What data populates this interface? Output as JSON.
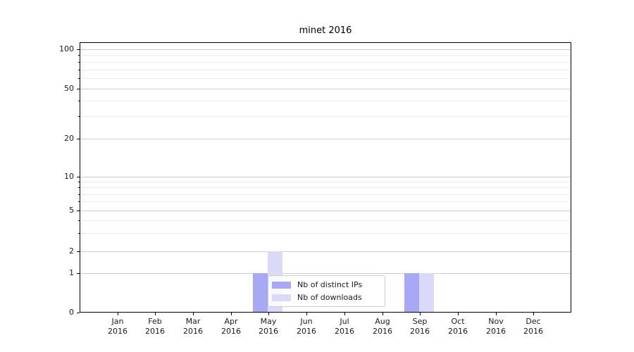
{
  "chart_data": {
    "type": "bar",
    "title": "minet 2016",
    "categories": [
      "Jan 2016",
      "Feb 2016",
      "Mar 2016",
      "Apr 2016",
      "May 2016",
      "Jun 2016",
      "Jul 2016",
      "Aug 2016",
      "Sep 2016",
      "Oct 2016",
      "Nov 2016",
      "Dec 2016"
    ],
    "series": [
      {
        "name": "Nb of distinct IPs",
        "color": "#a8a8f5",
        "values": [
          0,
          0,
          0,
          0,
          1,
          0,
          0,
          0,
          1,
          0,
          0,
          0
        ]
      },
      {
        "name": "Nb of downloads",
        "color": "#dadaf8",
        "values": [
          0,
          0,
          0,
          0,
          2,
          0,
          0,
          0,
          1,
          0,
          0,
          0
        ]
      }
    ],
    "xlabel": "",
    "ylabel": "",
    "y_axis": {
      "scale": "symlog-like",
      "major_ticks": [
        0,
        1,
        2,
        5,
        10,
        20,
        50,
        100
      ],
      "minor_gridlines": [
        3,
        4,
        6,
        7,
        8,
        9,
        30,
        40,
        60,
        70,
        80,
        90
      ],
      "tick_fractions": {
        "0": 0.0,
        "1": 0.1458,
        "2": 0.2266,
        "5": 0.3776,
        "10": 0.5026,
        "20": 0.6432,
        "50": 0.8294,
        "100": 0.974
      },
      "ylim": [
        0,
        110
      ]
    },
    "grid": true,
    "legend": {
      "position": "lower-center-inside",
      "entries": [
        "Nb of distinct IPs",
        "Nb of downloads"
      ]
    }
  },
  "colors": {
    "background": "#ffffff",
    "spine": "#000000",
    "grid_major": "#cccccc",
    "grid_minor": "#ebebeb",
    "bar_distinct_ips": "#a8a8f5",
    "bar_downloads": "#dadaf8"
  }
}
